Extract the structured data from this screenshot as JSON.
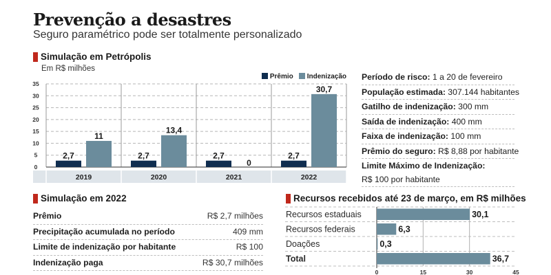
{
  "header": {
    "title": "Prevenção a desastres",
    "subtitle": "Seguro paramétrico pode ser totalmente personalizado"
  },
  "colors": {
    "accent": "#c0281c",
    "premio": "#0f2d4f",
    "indenizacao": "#6b8c9c",
    "year_band": "#dfe5ea"
  },
  "petropolis": {
    "heading": "Simulação em Petrópolis",
    "unit": "Em R$ milhões",
    "legend": [
      "Prêmio",
      "Indenização"
    ]
  },
  "info": {
    "rows": [
      {
        "label": "Período de risco:",
        "value": " 1 a 20 de fevereiro"
      },
      {
        "label": "População estimada:",
        "value": " 307.144 habitantes"
      },
      {
        "label": "Gatilho de indenização:",
        "value": " 300 mm"
      },
      {
        "label": "Saída de indenização:",
        "value": " 400 mm"
      },
      {
        "label": "Faixa de indenização:",
        "value": " 100 mm"
      },
      {
        "label": "Prêmio do seguro:",
        "value": " R$ 8,88 por habitante"
      }
    ],
    "limit_label": "Limite Máximo de Indenização:",
    "limit_value": "R$ 100 por habitante"
  },
  "sim2022": {
    "heading": "Simulação em 2022",
    "rows": [
      {
        "label": "Prêmio",
        "value": "R$ 2,7 milhões"
      },
      {
        "label": "Precipitação acumulada no período",
        "value": "409 mm"
      },
      {
        "label": "Limite de indenização por habitante",
        "value": "R$ 100"
      },
      {
        "label": "Indenização paga",
        "value": "R$ 30,7 milhões"
      }
    ]
  },
  "recursos": {
    "heading": "Recursos recebidos até 23 de março, em R$ milhões"
  },
  "chart_data": [
    {
      "type": "bar",
      "title": "Simulação em Petrópolis",
      "ylabel": "Em R$ milhões",
      "categories": [
        "2019",
        "2020",
        "2021",
        "2022"
      ],
      "series": [
        {
          "name": "Prêmio",
          "values": [
            2.7,
            2.7,
            2.7,
            2.7
          ],
          "labels": [
            "2,7",
            "2,7",
            "2,7",
            "2,7"
          ]
        },
        {
          "name": "Indenização",
          "values": [
            11,
            13.4,
            0,
            30.7
          ],
          "labels": [
            "11",
            "13,4",
            "0",
            "30,7"
          ]
        }
      ],
      "yticks": [
        0,
        5,
        10,
        15,
        20,
        25,
        30,
        35
      ],
      "ylim": [
        0,
        35
      ],
      "grid": true,
      "legend": "top-right"
    },
    {
      "type": "bar",
      "orientation": "horizontal",
      "title": "Recursos recebidos até 23 de março, em R$ milhões",
      "categories": [
        "Recursos estaduais",
        "Recursos federais",
        "Doações",
        "Total"
      ],
      "bold_categories": [
        "Total"
      ],
      "values": [
        30.1,
        6.3,
        0.3,
        36.7
      ],
      "labels": [
        "30,1",
        "6,3",
        "0,3",
        "36,7"
      ],
      "xticks": [
        0,
        15,
        30,
        45
      ],
      "xlim": [
        0,
        45
      ],
      "grid": true
    }
  ]
}
